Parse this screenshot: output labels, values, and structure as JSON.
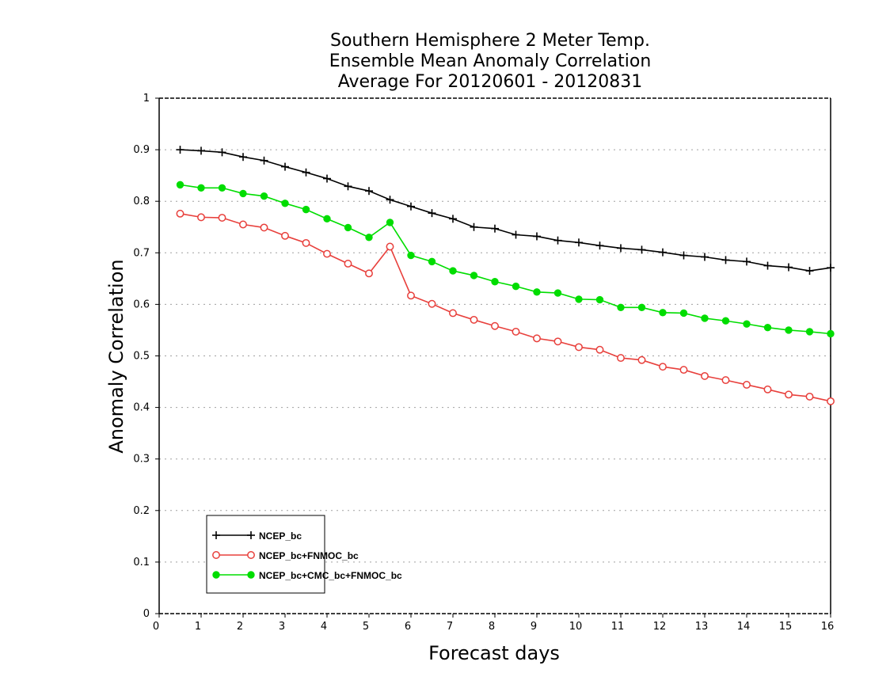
{
  "chart_data": {
    "type": "line",
    "title": [
      "Southern Hemisphere 2 Meter Temp.",
      "Ensemble Mean Anomaly Correlation",
      "Average For 20120601 - 20120831"
    ],
    "xlabel": "Forecast days",
    "ylabel": "Anomaly Correlation",
    "xlim": [
      0,
      16
    ],
    "ylim": [
      0,
      1
    ],
    "x_ticks": [
      "0",
      "1",
      "2",
      "3",
      "4",
      "5",
      "6",
      "7",
      "8",
      "9",
      "10",
      "11",
      "12",
      "13",
      "14",
      "15",
      "16"
    ],
    "y_ticks": [
      "0",
      "0.1",
      "0.2",
      "0.3",
      "0.4",
      "0.5",
      "0.6",
      "0.7",
      "0.8",
      "0.9",
      "1"
    ],
    "grid": "horizontal dotted",
    "legend_position": "bottom-left",
    "x": [
      0.5,
      1,
      1.5,
      2,
      2.5,
      3,
      3.5,
      4,
      4.5,
      5,
      5.5,
      6,
      6.5,
      7,
      7.5,
      8,
      8.5,
      9,
      9.5,
      10,
      10.5,
      11,
      11.5,
      12,
      12.5,
      13,
      13.5,
      14,
      14.5,
      15,
      15.5,
      16
    ],
    "series": [
      {
        "name": "NCEP_bc",
        "color": "#000000",
        "marker": "plus",
        "values": [
          0.9,
          0.898,
          0.895,
          0.886,
          0.879,
          0.867,
          0.856,
          0.844,
          0.829,
          0.82,
          0.803,
          0.79,
          0.777,
          0.766,
          0.75,
          0.747,
          0.735,
          0.732,
          0.724,
          0.72,
          0.714,
          0.709,
          0.706,
          0.701,
          0.695,
          0.692,
          0.686,
          0.683,
          0.675,
          0.672,
          0.665,
          0.671
        ]
      },
      {
        "name": "NCEP_bc+FNMOC_bc",
        "color": "#e8403c",
        "marker": "open-circle",
        "values": [
          0.776,
          0.769,
          0.768,
          0.755,
          0.749,
          0.733,
          0.719,
          0.698,
          0.679,
          0.66,
          0.712,
          0.617,
          0.601,
          0.583,
          0.57,
          0.558,
          0.547,
          0.534,
          0.528,
          0.517,
          0.512,
          0.496,
          0.492,
          0.479,
          0.473,
          0.461,
          0.453,
          0.444,
          0.435,
          0.425,
          0.421,
          0.412
        ]
      },
      {
        "name": "NCEP_bc+CMC_bc+FNMOC_bc",
        "color": "#00dd00",
        "marker": "filled-circle",
        "values": [
          0.832,
          0.826,
          0.826,
          0.815,
          0.81,
          0.796,
          0.784,
          0.766,
          0.749,
          0.73,
          0.759,
          0.695,
          0.683,
          0.665,
          0.656,
          0.644,
          0.635,
          0.624,
          0.622,
          0.61,
          0.609,
          0.594,
          0.594,
          0.584,
          0.583,
          0.573,
          0.568,
          0.562,
          0.555,
          0.55,
          0.547,
          0.543
        ]
      }
    ]
  }
}
